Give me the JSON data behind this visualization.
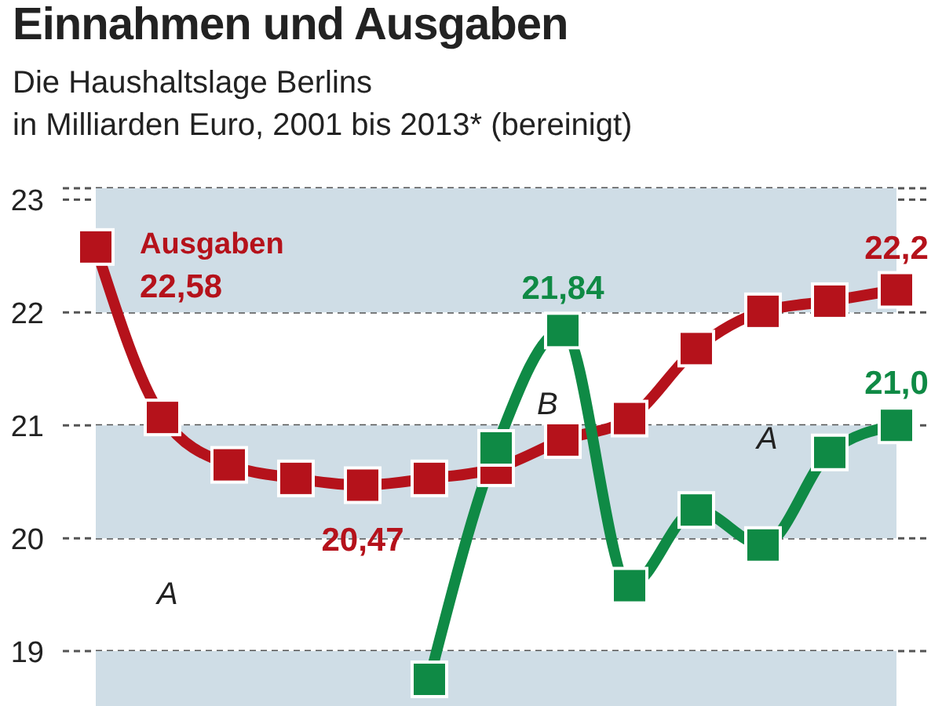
{
  "chart_data": {
    "type": "line",
    "title": "Einnahmen und Ausgaben",
    "subtitle": "Die Haushaltslage Berlins\nin Milliarden Euro, 2001 bis 2013* (bereinigt)",
    "categories": [
      null,
      null,
      null,
      null,
      null,
      null,
      null,
      null,
      null,
      null,
      null,
      null,
      null
    ],
    "series": [
      {
        "name": "Ausgaben",
        "color": "#b5121b",
        "values": [
          22.58,
          21.07,
          20.65,
          20.53,
          20.47,
          20.53,
          20.62,
          20.87,
          21.06,
          21.68,
          22.01,
          22.1,
          22.2
        ],
        "value_labels": [
          "22,58",
          null,
          null,
          null,
          "20,47",
          null,
          null,
          null,
          null,
          null,
          null,
          null,
          "22,2"
        ]
      },
      {
        "color": "#0f8a45",
        "values": [
          null,
          null,
          null,
          null,
          null,
          18.75,
          20.8,
          21.84,
          19.58,
          20.25,
          19.94,
          20.76,
          21.0
        ],
        "value_labels": [
          null,
          null,
          null,
          null,
          null,
          null,
          null,
          "21,84",
          null,
          null,
          null,
          null,
          "21,0"
        ]
      }
    ],
    "ylim": [
      18.5,
      23.1
    ],
    "yticks": [
      19,
      20,
      21,
      22,
      23
    ],
    "grid": "y",
    "marker": "square",
    "line_style": "solid",
    "tick_labels": "y",
    "legend": false,
    "bands": [
      {
        "axis": "y",
        "from": 22,
        "to": 23.1,
        "color": "#cfdde6"
      },
      {
        "axis": "y",
        "from": 20,
        "to": 21,
        "color": "#cfdde6"
      },
      {
        "axis": "y",
        "from": 18.5,
        "to": 19,
        "color": "#cfdde6"
      }
    ],
    "annotations": [
      "A",
      "B",
      "A"
    ]
  }
}
